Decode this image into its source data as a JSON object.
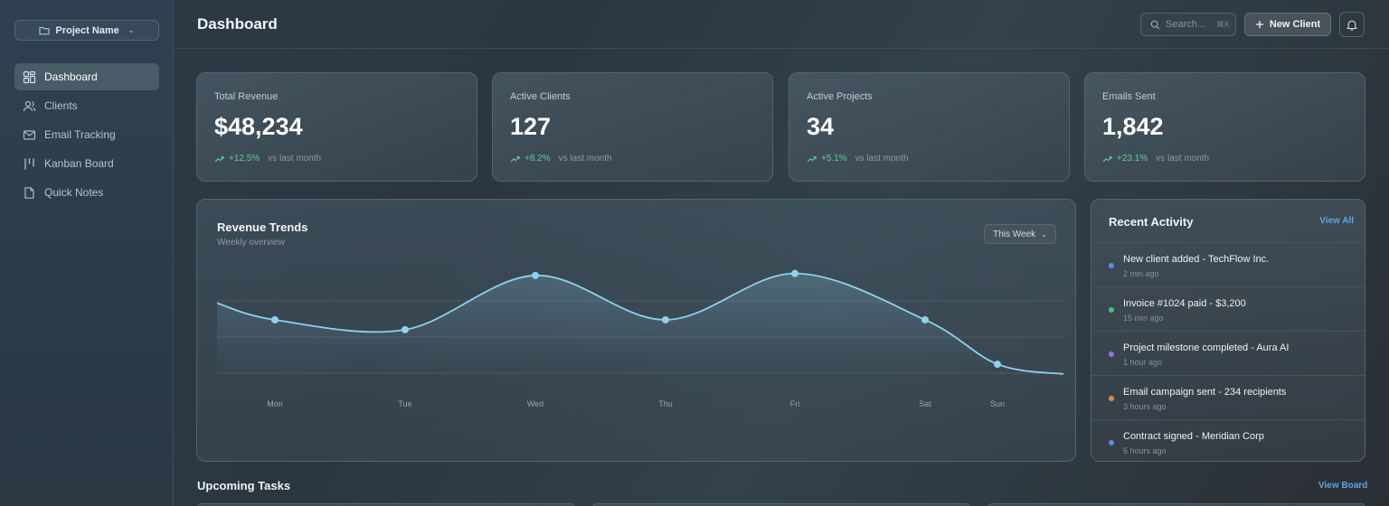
{
  "sidebar": {
    "project_label": "Project Name",
    "items": [
      {
        "label": "Dashboard",
        "icon": "dashboard-icon",
        "active": true
      },
      {
        "label": "Clients",
        "icon": "users-icon"
      },
      {
        "label": "Email Tracking",
        "icon": "mail-icon"
      },
      {
        "label": "Kanban Board",
        "icon": "kanban-icon"
      },
      {
        "label": "Quick Notes",
        "icon": "note-icon"
      }
    ]
  },
  "header": {
    "title": "Dashboard",
    "search_placeholder": "Search...",
    "search_shortcut": "⌘K",
    "new_client_label": "New Client"
  },
  "stats": [
    {
      "label": "Total Revenue",
      "value": "$48,234",
      "delta": "+12.5%",
      "compare": "vs last month"
    },
    {
      "label": "Active Clients",
      "value": "127",
      "delta": "+8.2%",
      "compare": "vs last month"
    },
    {
      "label": "Active Projects",
      "value": "34",
      "delta": "+5.1%",
      "compare": "vs last month"
    },
    {
      "label": "Emails Sent",
      "value": "1,842",
      "delta": "+23.1%",
      "compare": "vs last month"
    }
  ],
  "chart": {
    "title": "Revenue Trends",
    "subtitle": "Weekly overview",
    "range_label": "This Week"
  },
  "chart_data": {
    "type": "area",
    "title": "Revenue Trends",
    "subtitle": "Weekly overview",
    "categories": [
      "Mon",
      "Tue",
      "Wed",
      "Thu",
      "Fri",
      "Sat",
      "Sun"
    ],
    "series": [
      {
        "values": [
          0.55,
          0.45,
          1.0,
          0.55,
          1.02,
          0.55,
          0.1
        ]
      }
    ],
    "ylim": [
      0,
      1.2
    ],
    "grid": true,
    "color": "#8fd1ee"
  },
  "activity": {
    "title": "Recent Activity",
    "view_all": "View All",
    "items": [
      {
        "text": "New client added - TechFlow Inc.",
        "time": "2 min ago",
        "color": "#5b8ee8"
      },
      {
        "text": "Invoice #1024 paid - $3,200",
        "time": "15 min ago",
        "color": "#48c07f"
      },
      {
        "text": "Project milestone completed - Aura AI",
        "time": "1 hour ago",
        "color": "#9a74e0"
      },
      {
        "text": "Email campaign sent - 234 recipients",
        "time": "3 hours ago",
        "color": "#e28a48"
      },
      {
        "text": "Contract signed - Meridian Corp",
        "time": "5 hours ago",
        "color": "#5b8ee8"
      }
    ]
  },
  "tasks": {
    "title": "Upcoming Tasks",
    "view_board": "View Board"
  }
}
